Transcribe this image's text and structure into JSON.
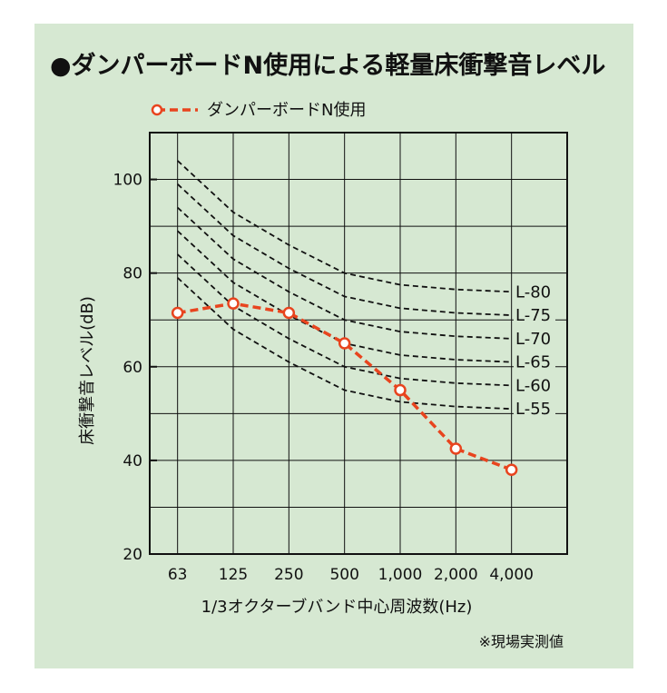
{
  "chart_data": {
    "type": "line",
    "title": "●ダンパーボードN使用による軽量床衝撃音レベル",
    "xlabel": "1/3オクターブバンド中心周波数(Hz)",
    "ylabel": "床衝撃音レベル(dB)",
    "note": "※現場実測値",
    "categories": [
      "63",
      "125",
      "250",
      "500",
      "1,000",
      "2,000",
      "4,000"
    ],
    "ylim": [
      20,
      110
    ],
    "yticks": [
      20,
      40,
      60,
      80,
      100
    ],
    "grid": true,
    "legend_position": "top-left",
    "series": [
      {
        "name": "ダンパーボードN使用",
        "values": [
          71.5,
          73.5,
          71.5,
          65,
          55,
          42.5,
          38
        ],
        "color": "#e8441e",
        "style": "dashed-with-circles"
      }
    ],
    "reference_curves": [
      {
        "label": "L-80",
        "values": [
          104,
          93,
          86,
          80,
          77.5,
          76.5,
          76
        ]
      },
      {
        "label": "L-75",
        "values": [
          99,
          88,
          81,
          75,
          72.5,
          71.5,
          71
        ]
      },
      {
        "label": "L-70",
        "values": [
          94,
          83,
          76,
          70,
          67.5,
          66.5,
          66
        ]
      },
      {
        "label": "L-65",
        "values": [
          89,
          78,
          71,
          65,
          62.5,
          61.5,
          61
        ]
      },
      {
        "label": "L-60",
        "values": [
          84,
          73,
          66,
          60,
          57.5,
          56.5,
          56
        ]
      },
      {
        "label": "L-55",
        "values": [
          79,
          68,
          61,
          55,
          52.5,
          51.5,
          51
        ]
      }
    ]
  }
}
